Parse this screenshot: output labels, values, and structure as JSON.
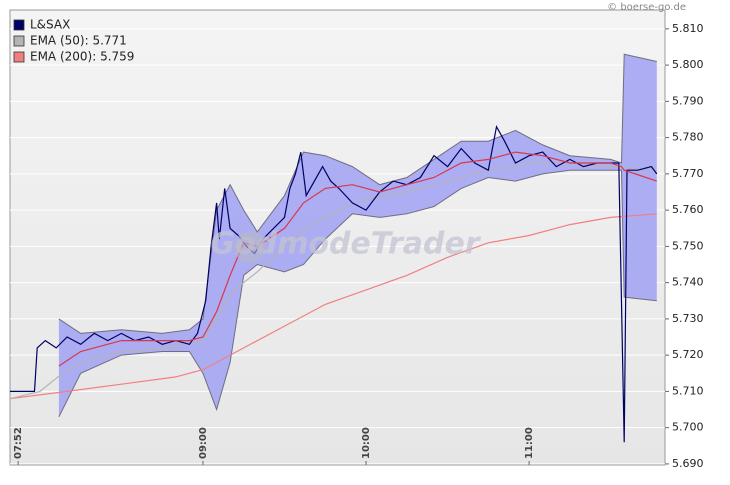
{
  "chart_data": {
    "type": "line",
    "credit": "© boerse-go.de",
    "watermark": "GodmodeTrader",
    "xlim": [
      "07:49",
      "11:50"
    ],
    "xticks": [
      "07:52",
      "09:00",
      "10:00",
      "11:00"
    ],
    "ylim": [
      5.6897,
      5.8152
    ],
    "yticks": [
      {
        "value": 5.69,
        "label": "5.690"
      },
      {
        "value": 5.7,
        "label": "5.700"
      },
      {
        "value": 5.71,
        "label": "5.710"
      },
      {
        "value": 5.72,
        "label": "5.720"
      },
      {
        "value": 5.73,
        "label": "5.730"
      },
      {
        "value": 5.74,
        "label": "5.740"
      },
      {
        "value": 5.75,
        "label": "5.750"
      },
      {
        "value": 5.76,
        "label": "5.760"
      },
      {
        "value": 5.77,
        "label": "5.770"
      },
      {
        "value": 5.78,
        "label": "5.780"
      },
      {
        "value": 5.79,
        "label": "5.790"
      },
      {
        "value": 5.8,
        "label": "5.800"
      },
      {
        "value": 5.81,
        "label": "5.810"
      }
    ],
    "grid": true,
    "band": {
      "fill": "#a8a9f2",
      "outline": "#6e6e7e",
      "middle_color": "#d83848",
      "x": [
        "08:07",
        "08:15",
        "08:30",
        "08:45",
        "08:55",
        "09:00",
        "09:05",
        "09:10",
        "09:15",
        "09:20",
        "09:30",
        "09:37",
        "09:45",
        "09:55",
        "10:05",
        "10:15",
        "10:25",
        "10:35",
        "10:45",
        "10:55",
        "11:05",
        "11:15",
        "11:30",
        "11:34",
        "11:35",
        "11:47"
      ],
      "upper": [
        5.73,
        5.726,
        5.727,
        5.726,
        5.727,
        5.73,
        5.76,
        5.767,
        5.76,
        5.754,
        5.764,
        5.776,
        5.775,
        5.772,
        5.767,
        5.769,
        5.774,
        5.779,
        5.779,
        5.782,
        5.778,
        5.775,
        5.774,
        5.773,
        5.803,
        5.801
      ],
      "lower": [
        5.703,
        5.715,
        5.72,
        5.721,
        5.721,
        5.715,
        5.705,
        5.718,
        5.742,
        5.745,
        5.743,
        5.745,
        5.752,
        5.759,
        5.758,
        5.759,
        5.761,
        5.766,
        5.769,
        5.768,
        5.77,
        5.771,
        5.771,
        5.771,
        5.736,
        5.735
      ],
      "middle": [
        5.717,
        5.721,
        5.724,
        5.724,
        5.724,
        5.725,
        5.732,
        5.742,
        5.751,
        5.75,
        5.755,
        5.762,
        5.766,
        5.767,
        5.765,
        5.767,
        5.769,
        5.773,
        5.774,
        5.776,
        5.775,
        5.773,
        5.773,
        5.772,
        5.771,
        5.768
      ]
    },
    "series": [
      {
        "name": "EMA (200): 5.759",
        "color": "#f08080",
        "x": [
          "07:49",
          "08:10",
          "08:30",
          "08:50",
          "09:00",
          "09:15",
          "09:30",
          "09:45",
          "10:00",
          "10:15",
          "10:30",
          "10:45",
          "11:00",
          "11:15",
          "11:30",
          "11:47"
        ],
        "values": [
          5.708,
          5.71,
          5.712,
          5.714,
          5.716,
          5.722,
          5.728,
          5.734,
          5.738,
          5.742,
          5.747,
          5.751,
          5.753,
          5.756,
          5.758,
          5.759
        ]
      },
      {
        "name": "EMA (50): 5.771",
        "color": "#b4b4b4",
        "x": [
          "07:49",
          "08:00",
          "08:10",
          "08:20",
          "08:30",
          "08:45",
          "09:00",
          "09:05",
          "09:10",
          "09:20",
          "09:30",
          "09:40",
          "09:50",
          "10:00",
          "10:15",
          "10:30",
          "10:45",
          "11:00",
          "11:15",
          "11:30",
          "11:47"
        ],
        "values": [
          5.708,
          5.71,
          5.716,
          5.719,
          5.721,
          5.722,
          5.724,
          5.73,
          5.737,
          5.743,
          5.75,
          5.756,
          5.76,
          5.763,
          5.765,
          5.768,
          5.771,
          5.773,
          5.773,
          5.772,
          5.771
        ]
      },
      {
        "name": "L&SAX",
        "color": "#000066",
        "x": [
          "07:49",
          "07:56",
          "07:58",
          "07:59",
          "08:02",
          "08:06",
          "08:10",
          "08:15",
          "08:20",
          "08:25",
          "08:30",
          "08:35",
          "08:40",
          "08:45",
          "08:50",
          "08:55",
          "08:58",
          "09:01",
          "09:03",
          "09:05",
          "09:06",
          "09:08",
          "09:10",
          "09:13",
          "09:16",
          "09:19",
          "09:22",
          "09:30",
          "09:32",
          "09:34",
          "09:36",
          "09:38",
          "09:41",
          "09:44",
          "09:47",
          "09:50",
          "09:55",
          "10:00",
          "10:05",
          "10:10",
          "10:15",
          "10:20",
          "10:25",
          "10:30",
          "10:35",
          "10:40",
          "10:45",
          "10:48",
          "10:51",
          "10:55",
          "11:00",
          "11:05",
          "11:10",
          "11:15",
          "11:20",
          "11:25",
          "11:30",
          "11:33",
          "11:35",
          "11:36",
          "11:40",
          "11:45",
          "11:47"
        ],
        "values": [
          5.71,
          5.71,
          5.71,
          5.722,
          5.724,
          5.722,
          5.725,
          5.723,
          5.726,
          5.724,
          5.726,
          5.724,
          5.725,
          5.723,
          5.724,
          5.723,
          5.726,
          5.735,
          5.75,
          5.762,
          5.752,
          5.766,
          5.755,
          5.753,
          5.75,
          5.748,
          5.752,
          5.758,
          5.766,
          5.77,
          5.776,
          5.764,
          5.768,
          5.772,
          5.768,
          5.766,
          5.762,
          5.76,
          5.765,
          5.768,
          5.767,
          5.769,
          5.775,
          5.772,
          5.777,
          5.773,
          5.771,
          5.783,
          5.779,
          5.773,
          5.775,
          5.776,
          5.772,
          5.774,
          5.772,
          5.773,
          5.773,
          5.773,
          5.696,
          5.771,
          5.771,
          5.772,
          5.77
        ]
      }
    ],
    "legend_order": [
      2,
      1,
      0
    ]
  }
}
